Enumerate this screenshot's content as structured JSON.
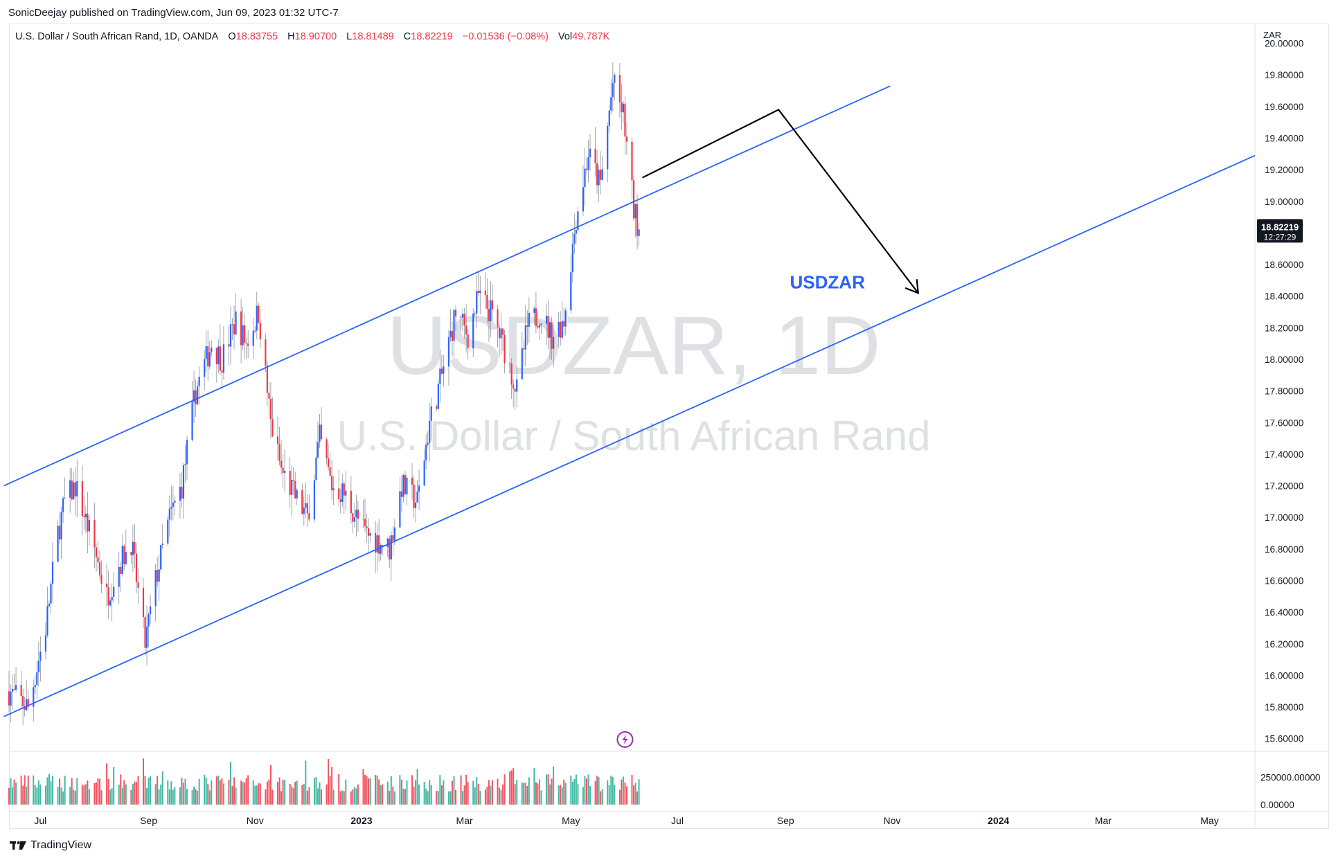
{
  "publisher_line": "SonicDeejay published on TradingView.com, Jun 09, 2023 01:32 UTC-7",
  "legend": {
    "symbol": "U.S. Dollar / South African Rand, 1D, OANDA",
    "o_label": "O",
    "o": "18.83755",
    "h_label": "H",
    "h": "18.90700",
    "l_label": "L",
    "l": "18.81489",
    "c_label": "C",
    "c": "18.82219",
    "change": "−0.01536 (−0.08%)",
    "vol_label": "Vol",
    "vol": "49.787K"
  },
  "watermark": {
    "line1": "USDZAR, 1D",
    "line2": "U.S. Dollar / South African Rand"
  },
  "annotation_text": "USDZAR",
  "footer": {
    "brand": "TradingView"
  },
  "colors": {
    "up": "#2962ff",
    "down": "#f23645",
    "channel": "#2962ff",
    "arrow": "#000000",
    "annotation": "#2962ff",
    "vol_up": "#22ab94",
    "vol_down": "#f23645",
    "price_badge_bg": "#131722",
    "watermark": "#dfe0e3"
  },
  "icons": {
    "footer": "tradingview-logo-icon",
    "event": "lightning-icon"
  },
  "chart_data": {
    "type": "candlestick",
    "currency_label": "ZAR",
    "ylim": [
      15.52,
      20.02
    ],
    "y_ticks": [
      "15.60000",
      "15.80000",
      "16.00000",
      "16.20000",
      "16.40000",
      "16.60000",
      "16.80000",
      "17.00000",
      "17.20000",
      "17.40000",
      "17.60000",
      "17.80000",
      "18.00000",
      "18.20000",
      "18.40000",
      "18.60000",
      "19.00000",
      "19.20000",
      "19.40000",
      "19.60000",
      "19.80000",
      "20.00000"
    ],
    "x_range": [
      "2022-06-13",
      "2024-05-27"
    ],
    "x_ticks": [
      {
        "label": "Jul",
        "date": "2022-07-01",
        "bold": false
      },
      {
        "label": "Sep",
        "date": "2022-09-01",
        "bold": false
      },
      {
        "label": "Nov",
        "date": "2022-11-01",
        "bold": false
      },
      {
        "label": "2023",
        "date": "2023-01-01",
        "bold": true
      },
      {
        "label": "Mar",
        "date": "2023-03-01",
        "bold": false
      },
      {
        "label": "May",
        "date": "2023-05-01",
        "bold": false
      },
      {
        "label": "Jul",
        "date": "2023-07-01",
        "bold": false
      },
      {
        "label": "Sep",
        "date": "2023-09-01",
        "bold": false
      },
      {
        "label": "Nov",
        "date": "2023-11-01",
        "bold": false
      },
      {
        "label": "2024",
        "date": "2024-01-01",
        "bold": true
      },
      {
        "label": "Mar",
        "date": "2024-03-01",
        "bold": false
      },
      {
        "label": "May",
        "date": "2024-05-01",
        "bold": false
      }
    ],
    "last_price": {
      "value": 18.82219,
      "label": "18.82219",
      "countdown": "12:27:29"
    },
    "volume_axis": {
      "ylim": [
        0,
        470000
      ],
      "ticks": [
        {
          "label": "250000.00000",
          "value": 250000
        },
        {
          "label": "0.00000",
          "value": 0
        }
      ]
    },
    "price_path": [
      [
        "2022-06-13",
        15.9
      ],
      [
        "2022-06-24",
        15.8
      ],
      [
        "2022-07-04",
        16.3
      ],
      [
        "2022-07-11",
        16.9
      ],
      [
        "2022-07-15",
        17.1
      ],
      [
        "2022-07-21",
        17.2
      ],
      [
        "2022-08-01",
        16.8
      ],
      [
        "2022-08-08",
        16.5
      ],
      [
        "2022-08-15",
        16.7
      ],
      [
        "2022-08-22",
        16.85
      ],
      [
        "2022-08-30",
        16.2
      ],
      [
        "2022-09-05",
        16.6
      ],
      [
        "2022-09-13",
        17.0
      ],
      [
        "2022-09-20",
        17.2
      ],
      [
        "2022-09-28",
        17.8
      ],
      [
        "2022-10-07",
        18.1
      ],
      [
        "2022-10-13",
        18.0
      ],
      [
        "2022-10-21",
        18.25
      ],
      [
        "2022-10-27",
        18.1
      ],
      [
        "2022-11-03",
        18.3
      ],
      [
        "2022-11-10",
        17.6
      ],
      [
        "2022-11-16",
        17.3
      ],
      [
        "2022-11-23",
        17.15
      ],
      [
        "2022-12-01",
        17.0
      ],
      [
        "2022-12-08",
        17.5
      ],
      [
        "2022-12-15",
        17.2
      ],
      [
        "2022-12-22",
        17.15
      ],
      [
        "2023-01-03",
        16.9
      ],
      [
        "2023-01-11",
        16.85
      ],
      [
        "2023-01-17",
        16.8
      ],
      [
        "2023-01-24",
        17.2
      ],
      [
        "2023-02-02",
        17.1
      ],
      [
        "2023-02-09",
        17.6
      ],
      [
        "2023-02-16",
        17.9
      ],
      [
        "2023-02-24",
        18.3
      ],
      [
        "2023-03-03",
        18.15
      ],
      [
        "2023-03-09",
        18.4
      ],
      [
        "2023-03-16",
        18.3
      ],
      [
        "2023-03-23",
        18.1
      ],
      [
        "2023-03-31",
        17.8
      ],
      [
        "2023-04-06",
        18.2
      ],
      [
        "2023-04-13",
        18.3
      ],
      [
        "2023-04-20",
        18.15
      ],
      [
        "2023-04-27",
        18.25
      ],
      [
        "2023-05-04",
        18.9
      ],
      [
        "2023-05-11",
        19.3
      ],
      [
        "2023-05-18",
        19.1
      ],
      [
        "2023-05-25",
        19.75
      ],
      [
        "2023-05-31",
        19.55
      ],
      [
        "2023-06-06",
        18.95
      ],
      [
        "2023-06-09",
        18.82
      ]
    ],
    "channel_lines": [
      {
        "name": "upper",
        "from": [
          "2022-06-10",
          17.2
        ],
        "to": [
          "2023-10-31",
          19.73
        ]
      },
      {
        "name": "middle",
        "from": [
          "2022-06-10",
          15.74
        ],
        "to": [
          "2024-05-27",
          19.29
        ]
      }
    ],
    "projection_path": [
      [
        "2023-06-11",
        19.15
      ],
      [
        "2023-08-28",
        19.58
      ],
      [
        "2023-11-16",
        18.42
      ]
    ],
    "annotation": {
      "date": "2023-09-25",
      "value": 18.45
    }
  }
}
